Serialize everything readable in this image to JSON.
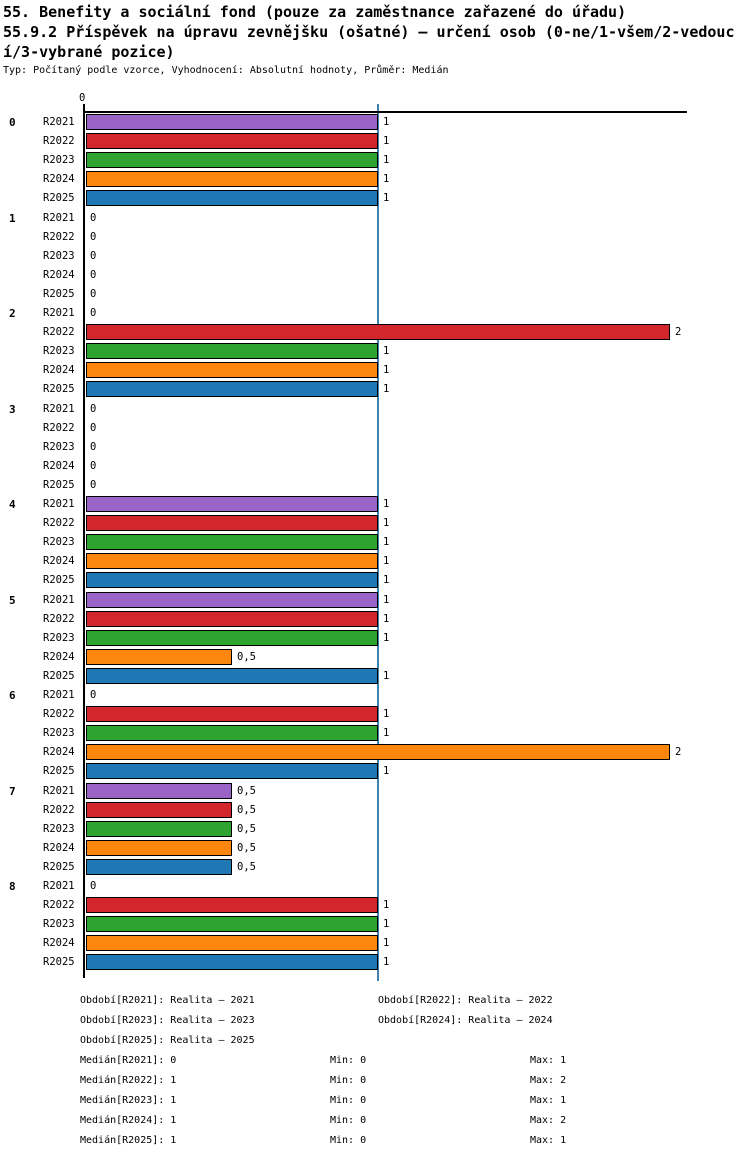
{
  "header": {
    "title_line1": "55. Benefity a sociální fond (pouze za zaměstnance zařazené do úřadu)",
    "title_line2": "55.9.2 Příspěvek na úpravu zevnějšku (ošatné) – určení osob (0-ne/1-všem/2-vedouc",
    "title_line3": "í/3-vybrané pozice)",
    "meta": "Typ: Počítaný podle vzorce, Vyhodnocení: Absolutní hodnoty, Průměr: Medián"
  },
  "chart_data": {
    "type": "bar",
    "orientation": "horizontal",
    "title": "55.9.2 Příspěvek na úpravu zevnějšku (ošatné) – určení osob (0-ne/1-všem/2-vedoucí/3-vybrané pozice)",
    "group_labels": [
      "0",
      "1",
      "2",
      "3",
      "4",
      "5",
      "6",
      "7",
      "8"
    ],
    "series": [
      {
        "name": "R2021",
        "color": "#9a64c6",
        "values": [
          1,
          0,
          0,
          0,
          1,
          1,
          0,
          0.5,
          0
        ]
      },
      {
        "name": "R2022",
        "color": "#d2262c",
        "values": [
          1,
          0,
          2,
          0,
          1,
          1,
          1,
          0.5,
          1
        ]
      },
      {
        "name": "R2023",
        "color": "#2ea32f",
        "values": [
          1,
          0,
          1,
          0,
          1,
          1,
          1,
          0.5,
          1
        ]
      },
      {
        "name": "R2024",
        "color": "#fd860f",
        "values": [
          1,
          0,
          1,
          0,
          1,
          0.5,
          2,
          0.5,
          1
        ]
      },
      {
        "name": "R2025",
        "color": "#1f77b4",
        "values": [
          1,
          0,
          1,
          0,
          1,
          1,
          1,
          0.5,
          1
        ]
      }
    ],
    "xlim": [
      0,
      2
    ],
    "value_axis_tick": {
      "label": "0",
      "value": 0
    },
    "median_line": {
      "value": 1,
      "color": "#4083b2"
    },
    "decimal_separator": ",",
    "grid": false,
    "legend_position": "bottom"
  },
  "footer": {
    "periods": [
      "Období[R2021]: Realita – 2021",
      "Období[R2022]: Realita – 2022",
      "Období[R2023]: Realita – 2023",
      "Období[R2024]: Realita – 2024",
      "Období[R2025]: Realita – 2025"
    ],
    "stats": [
      {
        "median": "Medián[R2021]: 0",
        "min": "Min: 0",
        "max": "Max: 1"
      },
      {
        "median": "Medián[R2022]: 1",
        "min": "Min: 0",
        "max": "Max: 2"
      },
      {
        "median": "Medián[R2023]: 1",
        "min": "Min: 0",
        "max": "Max: 1"
      },
      {
        "median": "Medián[R2024]: 1",
        "min": "Min: 0",
        "max": "Max: 2"
      },
      {
        "median": "Medián[R2025]: 1",
        "min": "Min: 0",
        "max": "Max: 1"
      }
    ]
  }
}
